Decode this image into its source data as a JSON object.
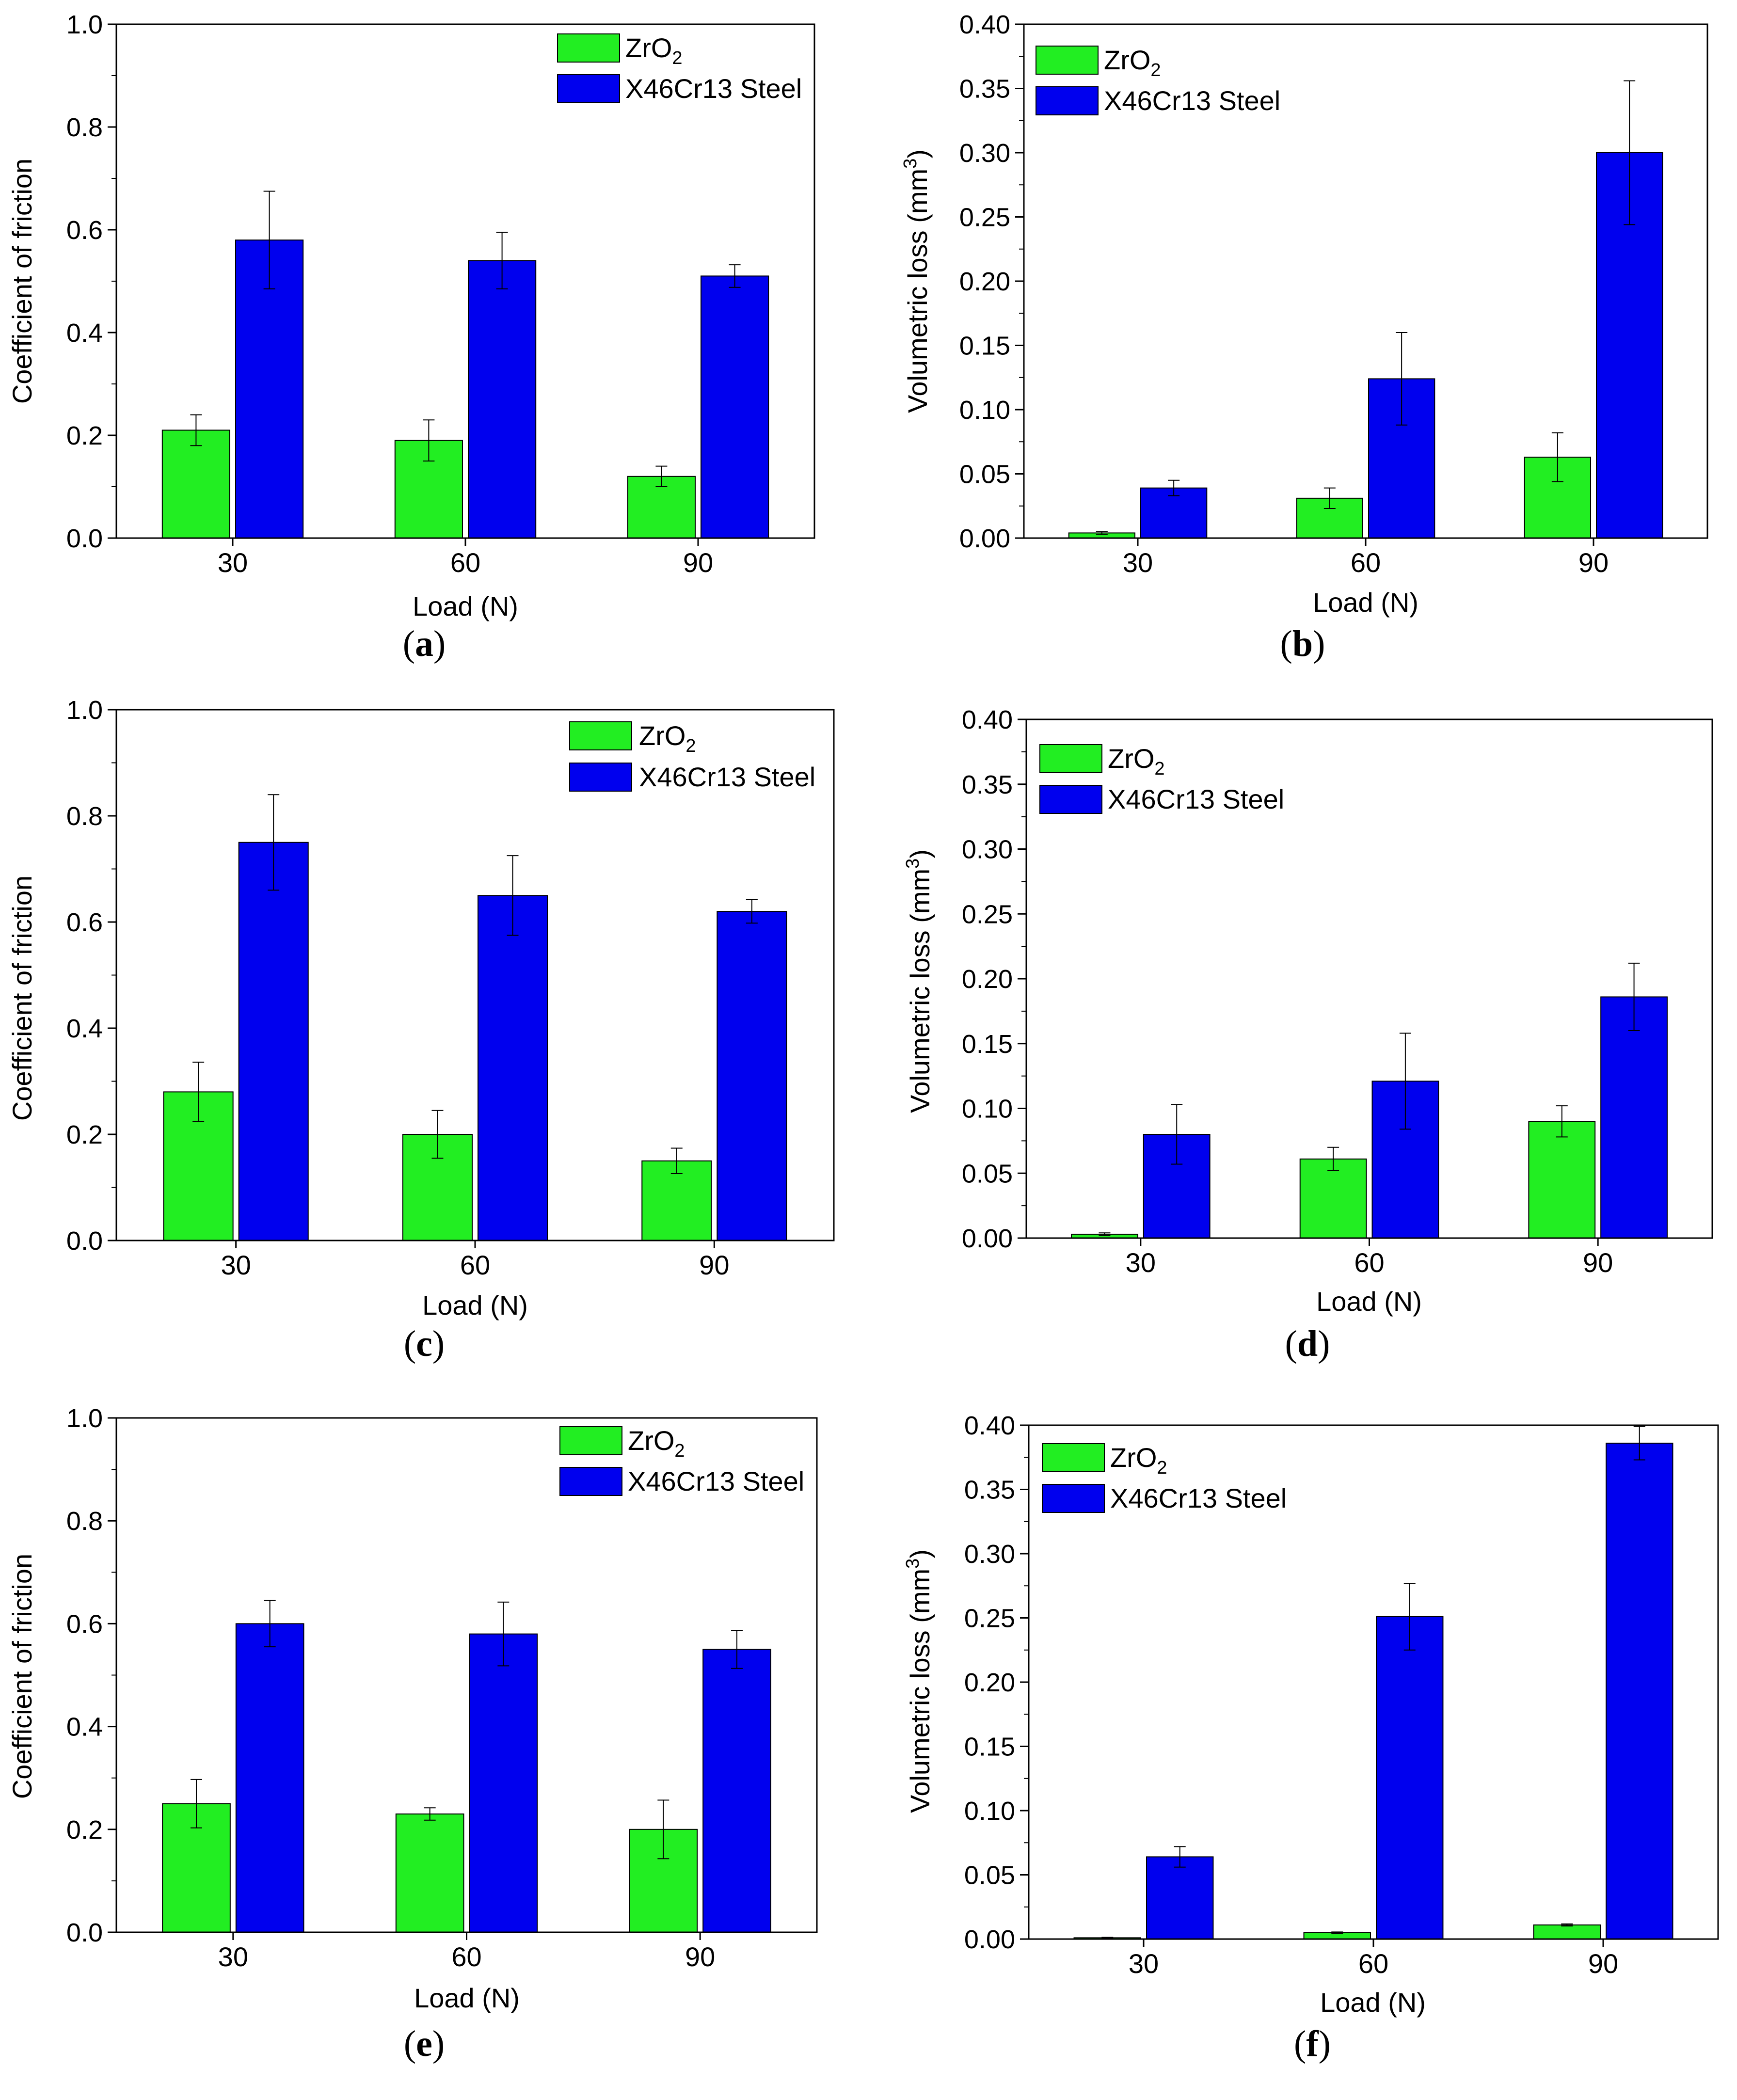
{
  "colors": {
    "zro2": "#22ee22",
    "steel": "#0000ee",
    "edge": "#000000"
  },
  "chart_data": [
    {
      "id": "a",
      "type": "bar",
      "caption": "a",
      "categories": [
        "30",
        "60",
        "90"
      ],
      "series": [
        {
          "name": "ZrO",
          "sub": "2",
          "values": [
            0.21,
            0.19,
            0.12
          ],
          "errors": [
            0.03,
            0.04,
            0.02
          ]
        },
        {
          "name": "X46Cr13 Steel",
          "values": [
            0.58,
            0.54,
            0.51
          ],
          "errors": [
            0.095,
            0.055,
            0.022
          ]
        }
      ],
      "xlabel": "Load (N)",
      "ylabel": "Coefficient of friction",
      "ylim": [
        0,
        1.0
      ],
      "ticks": [
        "0.0",
        "0.2",
        "0.4",
        "0.6",
        "0.8",
        "1.0"
      ],
      "legend": "top-right"
    },
    {
      "id": "b",
      "type": "bar",
      "caption": "b",
      "categories": [
        "30",
        "60",
        "90"
      ],
      "series": [
        {
          "name": "ZrO",
          "sub": "2",
          "values": [
            0.004,
            0.031,
            0.063
          ],
          "errors": [
            0.001,
            0.008,
            0.019
          ]
        },
        {
          "name": "X46Cr13 Steel",
          "values": [
            0.039,
            0.124,
            0.3
          ],
          "errors": [
            0.006,
            0.036,
            0.056
          ]
        }
      ],
      "xlabel": "Load (N)",
      "ylabel": "Volumetric loss (mm",
      "ylabel_sup": "3",
      "ylabel_end": ")",
      "ylim": [
        0,
        0.4
      ],
      "ticks": [
        "0.00",
        "0.05",
        "0.10",
        "0.15",
        "0.20",
        "0.25",
        "0.30",
        "0.35",
        "0.40"
      ],
      "legend": "top-left"
    },
    {
      "id": "c",
      "type": "bar",
      "caption": "c",
      "categories": [
        "30",
        "60",
        "90"
      ],
      "series": [
        {
          "name": "ZrO",
          "sub": "2",
          "values": [
            0.28,
            0.2,
            0.15
          ],
          "errors": [
            0.056,
            0.045,
            0.024
          ]
        },
        {
          "name": "X46Cr13 Steel",
          "values": [
            0.75,
            0.65,
            0.62
          ],
          "errors": [
            0.09,
            0.075,
            0.022
          ]
        }
      ],
      "xlabel": "Load (N)",
      "ylabel": "Coefficient of friction",
      "ylim": [
        0,
        1.0
      ],
      "ticks": [
        "0.0",
        "0.2",
        "0.4",
        "0.6",
        "0.8",
        "1.0"
      ],
      "legend": "top-right"
    },
    {
      "id": "d",
      "type": "bar",
      "caption": "d",
      "categories": [
        "30",
        "60",
        "90"
      ],
      "series": [
        {
          "name": "ZrO",
          "sub": "2",
          "values": [
            0.003,
            0.061,
            0.09
          ],
          "errors": [
            0.001,
            0.009,
            0.012
          ]
        },
        {
          "name": "X46Cr13 Steel",
          "values": [
            0.08,
            0.121,
            0.186
          ],
          "errors": [
            0.023,
            0.037,
            0.026
          ]
        }
      ],
      "xlabel": "Load (N)",
      "ylabel": "Volumetric loss (mm",
      "ylabel_sup": "3",
      "ylabel_end": ")",
      "ylim": [
        0,
        0.4
      ],
      "ticks": [
        "0.00",
        "0.05",
        "0.10",
        "0.15",
        "0.20",
        "0.25",
        "0.30",
        "0.35",
        "0.40"
      ],
      "legend": "top-left"
    },
    {
      "id": "e",
      "type": "bar",
      "caption": "e",
      "categories": [
        "30",
        "60",
        "90"
      ],
      "series": [
        {
          "name": "ZrO",
          "sub": "2",
          "values": [
            0.25,
            0.23,
            0.2
          ],
          "errors": [
            0.047,
            0.012,
            0.057
          ]
        },
        {
          "name": "X46Cr13 Steel",
          "values": [
            0.6,
            0.58,
            0.55
          ],
          "errors": [
            0.045,
            0.062,
            0.037
          ]
        }
      ],
      "xlabel": "Load (N)",
      "ylabel": "Coefficient of friction",
      "ylim": [
        0,
        1.0
      ],
      "ticks": [
        "0.0",
        "0.2",
        "0.4",
        "0.6",
        "0.8",
        "1.0"
      ],
      "legend": "top-right"
    },
    {
      "id": "f",
      "type": "bar",
      "caption": "f",
      "categories": [
        "30",
        "60",
        "90"
      ],
      "series": [
        {
          "name": "ZrO",
          "sub": "2",
          "values": [
            0.001,
            0.005,
            0.011
          ],
          "errors": [
            0.0003,
            0.0005,
            0.0008
          ]
        },
        {
          "name": "X46Cr13 Steel",
          "values": [
            0.064,
            0.251,
            0.386
          ],
          "errors": [
            0.008,
            0.026,
            0.013
          ]
        }
      ],
      "xlabel": "Load (N)",
      "ylabel": "Volumetric loss (mm",
      "ylabel_sup": "3",
      "ylabel_end": ")",
      "ylim": [
        0,
        0.4
      ],
      "ticks": [
        "0.00",
        "0.05",
        "0.10",
        "0.15",
        "0.20",
        "0.25",
        "0.30",
        "0.35",
        "0.40"
      ],
      "legend": "top-left"
    }
  ]
}
